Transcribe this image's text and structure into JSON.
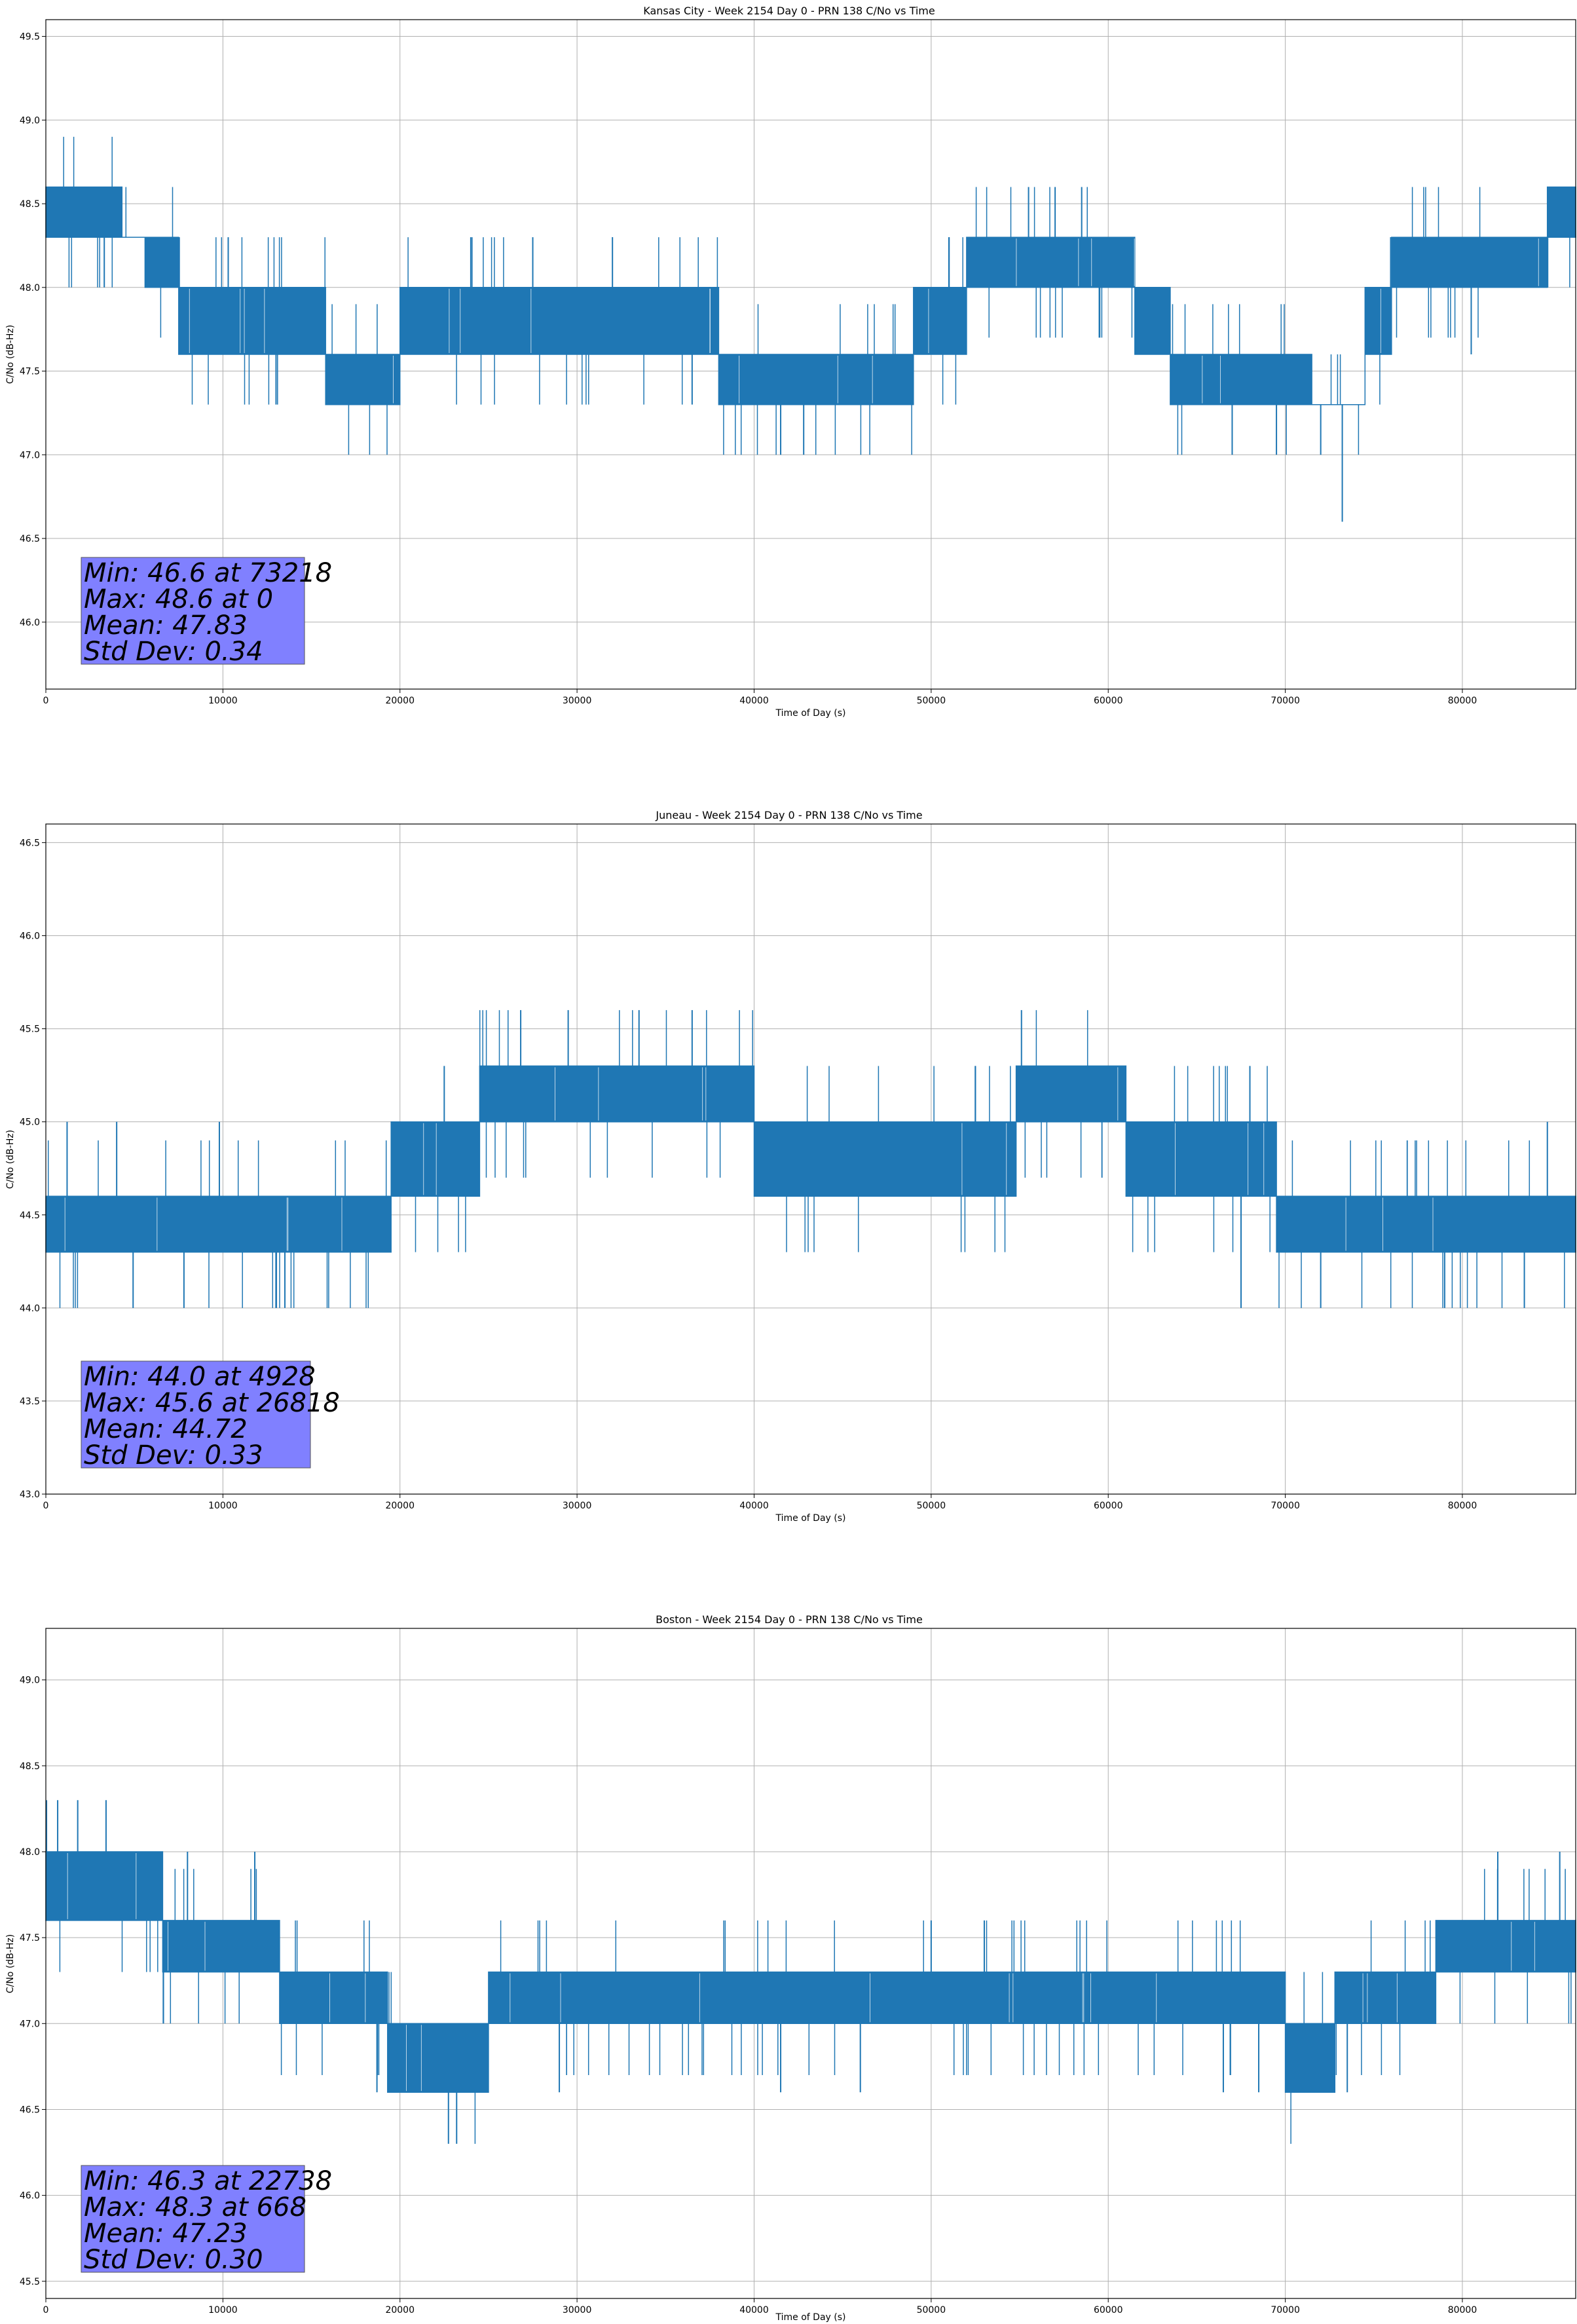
{
  "chart_data": [
    {
      "type": "line",
      "title": "Kansas City - Week 2154 Day 0 - PRN 138 C/No vs Time",
      "xlabel": "Time of Day (s)",
      "ylabel": "C/No (dB-Hz)",
      "xlim": [
        0,
        86400
      ],
      "ylim": [
        45.6,
        49.6
      ],
      "xticks": [
        0,
        10000,
        20000,
        30000,
        40000,
        50000,
        60000,
        70000,
        80000
      ],
      "yticks": [
        46.0,
        46.5,
        47.0,
        47.5,
        48.0,
        48.5,
        49.0,
        49.5
      ],
      "grid": true,
      "color": "#1f77b4",
      "band_values": [
        {
          "x": 0,
          "low": 48.3,
          "high": 48.6
        },
        {
          "x": 4300,
          "low": 48.3,
          "high": 48.3
        },
        {
          "x": 5600,
          "low": 48.0,
          "high": 48.3
        },
        {
          "x": 7500,
          "low": 47.6,
          "high": 48.0
        },
        {
          "x": 15800,
          "low": 47.3,
          "high": 47.6
        },
        {
          "x": 20000,
          "low": 47.6,
          "high": 48.0
        },
        {
          "x": 35000,
          "low": 47.6,
          "high": 48.0
        },
        {
          "x": 38000,
          "low": 47.3,
          "high": 47.6
        },
        {
          "x": 49000,
          "low": 47.6,
          "high": 48.0
        },
        {
          "x": 52000,
          "low": 48.0,
          "high": 48.3
        },
        {
          "x": 61500,
          "low": 47.6,
          "high": 48.0
        },
        {
          "x": 63500,
          "low": 47.3,
          "high": 47.6
        },
        {
          "x": 71500,
          "low": 47.3,
          "high": 47.3
        },
        {
          "x": 74500,
          "low": 47.6,
          "high": 48.0
        },
        {
          "x": 76000,
          "low": 48.0,
          "high": 48.3
        },
        {
          "x": 83000,
          "low": 48.0,
          "high": 48.3
        },
        {
          "x": 84800,
          "low": 48.3,
          "high": 48.6
        },
        {
          "x": 86400,
          "low": 48.3,
          "high": 48.6
        }
      ],
      "spikes": [
        {
          "x": 3300,
          "y": 48.0
        },
        {
          "x": 10300,
          "y": 48.3
        },
        {
          "x": 13000,
          "y": 47.3
        },
        {
          "x": 18000,
          "y": 47.3
        },
        {
          "x": 24000,
          "y": 48.3
        },
        {
          "x": 27500,
          "y": 48.3
        },
        {
          "x": 32000,
          "y": 48.3
        },
        {
          "x": 36500,
          "y": 47.3
        },
        {
          "x": 41500,
          "y": 47.0
        },
        {
          "x": 42800,
          "y": 47.0
        },
        {
          "x": 51000,
          "y": 48.3
        },
        {
          "x": 55500,
          "y": 48.6
        },
        {
          "x": 57000,
          "y": 48.6
        },
        {
          "x": 58500,
          "y": 48.6
        },
        {
          "x": 67000,
          "y": 47.0
        },
        {
          "x": 69500,
          "y": 47.0
        },
        {
          "x": 72000,
          "y": 47.0
        },
        {
          "x": 73218,
          "y": 46.6
        },
        {
          "x": 80500,
          "y": 47.6
        }
      ],
      "stats": {
        "min_text": "Min: 46.6 at 73218",
        "max_text": "Max: 48.6 at 0",
        "mean_text": "Mean: 47.83",
        "std_text": "Std Dev: 0.34"
      }
    },
    {
      "type": "line",
      "title": "Juneau - Week 2154 Day 0 - PRN 138 C/No vs Time",
      "xlabel": "Time of Day (s)",
      "ylabel": "C/No (dB-Hz)",
      "xlim": [
        0,
        86400
      ],
      "ylim": [
        43.0,
        46.6
      ],
      "xticks": [
        0,
        10000,
        20000,
        30000,
        40000,
        50000,
        60000,
        70000,
        80000
      ],
      "yticks": [
        43.0,
        43.5,
        44.0,
        44.5,
        45.0,
        45.5,
        46.0,
        46.5
      ],
      "grid": true,
      "color": "#1f77b4",
      "band_values": [
        {
          "x": 0,
          "low": 44.3,
          "high": 44.6
        },
        {
          "x": 14500,
          "low": 44.3,
          "high": 44.6
        },
        {
          "x": 19500,
          "low": 44.6,
          "high": 45.0
        },
        {
          "x": 24500,
          "low": 45.0,
          "high": 45.3
        },
        {
          "x": 39000,
          "low": 45.0,
          "high": 45.3
        },
        {
          "x": 40000,
          "low": 44.6,
          "high": 45.0
        },
        {
          "x": 54800,
          "low": 45.0,
          "high": 45.3
        },
        {
          "x": 61000,
          "low": 44.6,
          "high": 45.0
        },
        {
          "x": 69500,
          "low": 44.3,
          "high": 44.6
        },
        {
          "x": 86400,
          "low": 44.3,
          "high": 44.6
        }
      ],
      "spikes": [
        {
          "x": 4928,
          "y": 44.0
        },
        {
          "x": 7800,
          "y": 44.0
        },
        {
          "x": 13500,
          "y": 44.0
        },
        {
          "x": 1200,
          "y": 45.0
        },
        {
          "x": 4000,
          "y": 45.0
        },
        {
          "x": 9800,
          "y": 45.0
        },
        {
          "x": 22500,
          "y": 45.3
        },
        {
          "x": 26818,
          "y": 45.6
        },
        {
          "x": 29500,
          "y": 45.6
        },
        {
          "x": 33500,
          "y": 45.6
        },
        {
          "x": 36500,
          "y": 45.6
        },
        {
          "x": 55100,
          "y": 45.6
        },
        {
          "x": 52500,
          "y": 45.3
        },
        {
          "x": 68000,
          "y": 45.3
        },
        {
          "x": 67500,
          "y": 44.0
        },
        {
          "x": 72000,
          "y": 44.0
        },
        {
          "x": 79000,
          "y": 44.0
        },
        {
          "x": 83500,
          "y": 44.0
        },
        {
          "x": 84800,
          "y": 45.0
        }
      ],
      "stats": {
        "min_text": "Min: 44.0 at 4928",
        "max_text": "Max: 45.6 at 26818",
        "mean_text": "Mean: 44.72",
        "std_text": "Std Dev: 0.33"
      }
    },
    {
      "type": "line",
      "title": "Boston - Week 2154 Day 0 - PRN 138 C/No vs Time",
      "xlabel": "Time of Day (s)",
      "ylabel": "C/No (dB-Hz)",
      "xlim": [
        0,
        86400
      ],
      "ylim": [
        45.4,
        49.3
      ],
      "xticks": [
        0,
        10000,
        20000,
        30000,
        40000,
        50000,
        60000,
        70000,
        80000
      ],
      "yticks": [
        45.5,
        46.0,
        46.5,
        47.0,
        47.5,
        48.0,
        48.5,
        49.0
      ],
      "grid": true,
      "color": "#1f77b4",
      "band_values": [
        {
          "x": 0,
          "low": 47.6,
          "high": 48.0
        },
        {
          "x": 6200,
          "low": 47.6,
          "high": 48.0
        },
        {
          "x": 6600,
          "low": 47.3,
          "high": 47.6
        },
        {
          "x": 13200,
          "low": 47.0,
          "high": 47.3
        },
        {
          "x": 19300,
          "low": 46.6,
          "high": 47.0
        },
        {
          "x": 25000,
          "low": 47.0,
          "high": 47.3
        },
        {
          "x": 65500,
          "low": 47.0,
          "high": 47.3
        },
        {
          "x": 70000,
          "low": 46.6,
          "high": 47.0
        },
        {
          "x": 72800,
          "low": 47.0,
          "high": 47.3
        },
        {
          "x": 78500,
          "low": 47.3,
          "high": 47.6
        },
        {
          "x": 86400,
          "low": 47.3,
          "high": 47.6
        }
      ],
      "spikes": [
        {
          "x": 668,
          "y": 48.3
        },
        {
          "x": 1800,
          "y": 48.3
        },
        {
          "x": 3400,
          "y": 48.3
        },
        {
          "x": 8000,
          "y": 48.0
        },
        {
          "x": 11800,
          "y": 48.0
        },
        {
          "x": 18700,
          "y": 46.6
        },
        {
          "x": 22738,
          "y": 46.3
        },
        {
          "x": 23200,
          "y": 46.3
        },
        {
          "x": 29000,
          "y": 46.6
        },
        {
          "x": 41500,
          "y": 46.6
        },
        {
          "x": 46000,
          "y": 46.6
        },
        {
          "x": 50000,
          "y": 47.6
        },
        {
          "x": 53000,
          "y": 47.6
        },
        {
          "x": 66500,
          "y": 46.6
        },
        {
          "x": 68500,
          "y": 46.6
        },
        {
          "x": 73500,
          "y": 46.6
        },
        {
          "x": 82000,
          "y": 48.0
        },
        {
          "x": 85500,
          "y": 48.0
        }
      ],
      "stats": {
        "min_text": "Min: 46.3 at 22738",
        "max_text": "Max: 48.3 at 668",
        "mean_text": "Mean: 47.23",
        "std_text": "Std Dev: 0.30"
      }
    }
  ]
}
